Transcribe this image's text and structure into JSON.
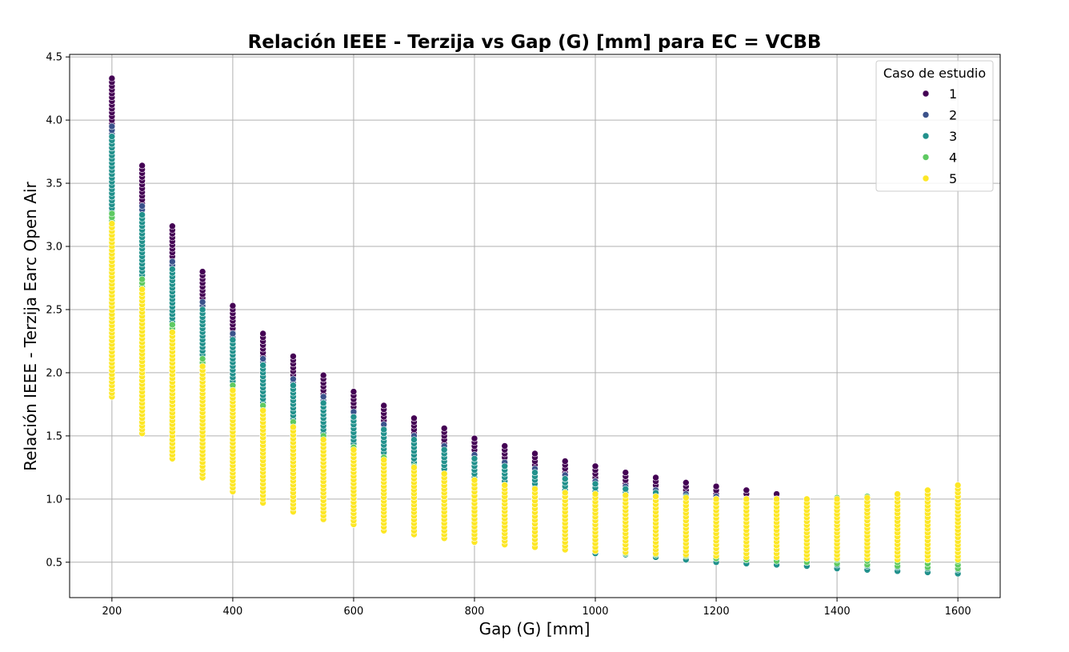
{
  "chart_data": {
    "type": "scatter",
    "title": "Relación IEEE - Terzija vs Gap (G) [mm] para EC = VCBB",
    "xlabel": "Gap (G) [mm]",
    "ylabel": "Relación IEEE - Terzija Earc Open Air",
    "xlim": [
      130,
      1670
    ],
    "ylim": [
      0.22,
      4.52
    ],
    "xticks": [
      200,
      400,
      600,
      800,
      1000,
      1200,
      1400,
      1600
    ],
    "xtick_labels": [
      "200",
      "400",
      "600",
      "800",
      "1000",
      "1200",
      "1400",
      "1600"
    ],
    "yticks": [
      0.5,
      1.0,
      1.5,
      2.0,
      2.5,
      3.0,
      3.5,
      4.0,
      4.5
    ],
    "ytick_labels": [
      "0.5",
      "1.0",
      "1.5",
      "2.0",
      "2.5",
      "3.0",
      "3.5",
      "4.0",
      "4.5"
    ],
    "grid": true,
    "legend": {
      "title": "Caso de estudio",
      "placement": "top-right"
    },
    "x": [
      200,
      250,
      300,
      350,
      400,
      450,
      500,
      550,
      600,
      650,
      700,
      750,
      800,
      850,
      900,
      950,
      1000,
      1050,
      1100,
      1150,
      1200,
      1250,
      1300,
      1350,
      1400,
      1450,
      1500,
      1550,
      1600
    ],
    "series": [
      {
        "name": "1",
        "color": "#440154",
        "y_min": [
          2.02,
          1.6,
          1.37,
          1.22,
          1.1,
          1.01,
          0.94,
          0.88,
          0.83,
          0.79,
          0.75,
          0.72,
          0.69,
          0.66,
          0.64,
          0.62,
          0.6,
          0.58,
          0.57,
          0.56,
          0.55,
          0.54,
          0.53,
          0.52,
          0.51,
          0.5,
          0.49,
          0.48,
          0.47
        ],
        "y_max": [
          4.33,
          3.64,
          3.16,
          2.8,
          2.53,
          2.31,
          2.13,
          1.98,
          1.85,
          1.74,
          1.64,
          1.56,
          1.48,
          1.42,
          1.36,
          1.3,
          1.26,
          1.21,
          1.17,
          1.13,
          1.1,
          1.07,
          1.04,
          1.0,
          0.99,
          0.98,
          0.97,
          0.96,
          0.95
        ]
      },
      {
        "name": "2",
        "color": "#3b528b",
        "y_min": [
          1.95,
          1.57,
          1.35,
          1.2,
          1.09,
          1.0,
          0.93,
          0.87,
          0.82,
          0.78,
          0.74,
          0.71,
          0.68,
          0.65,
          0.63,
          0.61,
          0.59,
          0.57,
          0.56,
          0.55,
          0.54,
          0.53,
          0.52,
          0.51,
          0.5,
          0.49,
          0.48,
          0.47,
          0.46
        ],
        "y_max": [
          3.95,
          3.32,
          2.88,
          2.56,
          2.31,
          2.11,
          1.95,
          1.81,
          1.69,
          1.59,
          1.5,
          1.42,
          1.35,
          1.29,
          1.24,
          1.19,
          1.14,
          1.1,
          1.07,
          1.04,
          1.02,
          1.0,
          0.99,
          0.98,
          0.97,
          0.96,
          0.95,
          0.94,
          0.93
        ]
      },
      {
        "name": "3",
        "color": "#21918c",
        "y_min": [
          1.87,
          1.55,
          1.36,
          1.22,
          1.1,
          0.99,
          0.92,
          0.86,
          0.8,
          0.76,
          0.72,
          0.69,
          0.66,
          0.64,
          0.62,
          0.6,
          0.57,
          0.56,
          0.54,
          0.52,
          0.5,
          0.49,
          0.48,
          0.47,
          0.45,
          0.44,
          0.43,
          0.42,
          0.41
        ],
        "y_max": [
          3.87,
          3.25,
          2.82,
          2.5,
          2.26,
          2.06,
          1.9,
          1.76,
          1.65,
          1.55,
          1.47,
          1.39,
          1.32,
          1.26,
          1.21,
          1.16,
          1.12,
          1.08,
          1.05,
          1.02,
          0.99,
          0.98,
          1.0,
          1.0,
          1.01,
          1.02,
          1.03,
          1.04,
          1.05
        ]
      },
      {
        "name": "4",
        "color": "#5ec962",
        "y_min": [
          1.87,
          1.57,
          1.37,
          1.23,
          1.1,
          1.0,
          0.93,
          0.87,
          0.82,
          0.78,
          0.74,
          0.71,
          0.68,
          0.66,
          0.63,
          0.61,
          0.59,
          0.57,
          0.56,
          0.55,
          0.53,
          0.52,
          0.51,
          0.5,
          0.49,
          0.48,
          0.47,
          0.46,
          0.45
        ],
        "y_max": [
          3.26,
          2.74,
          2.38,
          2.11,
          1.9,
          1.74,
          1.61,
          1.5,
          1.41,
          1.33,
          1.26,
          1.2,
          1.15,
          1.11,
          1.07,
          1.04,
          1.01,
          0.99,
          0.98,
          0.99,
          1.0,
          1.0,
          1.0,
          1.0,
          1.01,
          1.02,
          1.03,
          1.05,
          1.07
        ]
      },
      {
        "name": "5",
        "color": "#fde725",
        "y_min": [
          1.81,
          1.52,
          1.32,
          1.17,
          1.06,
          0.97,
          0.9,
          0.84,
          0.8,
          0.75,
          0.72,
          0.69,
          0.66,
          0.64,
          0.62,
          0.6,
          0.59,
          0.58,
          0.57,
          0.56,
          0.55,
          0.54,
          0.54,
          0.53,
          0.53,
          0.53,
          0.52,
          0.52,
          0.52
        ],
        "y_max": [
          3.18,
          2.66,
          2.32,
          2.05,
          1.86,
          1.7,
          1.57,
          1.47,
          1.39,
          1.31,
          1.25,
          1.2,
          1.15,
          1.11,
          1.08,
          1.05,
          1.04,
          1.03,
          1.02,
          1.01,
          1.0,
          1.0,
          1.0,
          1.0,
          1.0,
          1.01,
          1.04,
          1.07,
          1.11
        ]
      }
    ]
  }
}
